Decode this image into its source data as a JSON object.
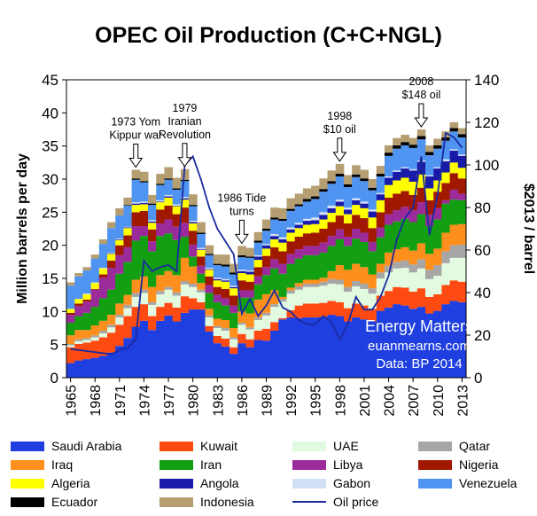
{
  "chart_data": {
    "type": "area",
    "stacked": true,
    "title": "OPEC Oil Production (C+C+NGL)",
    "xlabel": "",
    "ylabel": "Million barrels per day",
    "y2label": "$2013 / barrel",
    "ylim": [
      0,
      45
    ],
    "yticks": [
      0,
      5,
      10,
      15,
      20,
      25,
      30,
      35,
      40,
      45
    ],
    "y2lim": [
      0,
      140
    ],
    "y2ticks": [
      0,
      20,
      40,
      60,
      80,
      100,
      120,
      140
    ],
    "xlim": [
      1965,
      2013
    ],
    "xtick_labels": [
      "1965",
      "1968",
      "1971",
      "1974",
      "1977",
      "1980",
      "1983",
      "1986",
      "1989",
      "1992",
      "1995",
      "1998",
      "2001",
      "2004",
      "2007",
      "2010",
      "2013"
    ],
    "years": [
      1965,
      1966,
      1967,
      1968,
      1969,
      1970,
      1971,
      1972,
      1973,
      1974,
      1975,
      1976,
      1977,
      1978,
      1979,
      1980,
      1981,
      1982,
      1983,
      1984,
      1985,
      1986,
      1987,
      1988,
      1989,
      1990,
      1991,
      1992,
      1993,
      1994,
      1995,
      1996,
      1997,
      1998,
      1999,
      2000,
      2001,
      2002,
      2003,
      2004,
      2005,
      2006,
      2007,
      2008,
      2009,
      2010,
      2011,
      2012,
      2013
    ],
    "series": [
      {
        "name": "Saudi Arabia",
        "color": "#1f3fe0",
        "values": [
          2.2,
          2.6,
          2.8,
          3.0,
          3.3,
          3.8,
          4.8,
          6.0,
          7.7,
          8.6,
          7.2,
          8.6,
          9.4,
          8.5,
          9.8,
          10.3,
          10.3,
          7.0,
          5.2,
          4.7,
          3.6,
          5.2,
          4.6,
          5.7,
          5.6,
          7.1,
          8.8,
          9.1,
          9.0,
          9.1,
          9.1,
          9.2,
          9.5,
          9.3,
          8.5,
          9.1,
          8.8,
          8.5,
          10.1,
          10.6,
          11.1,
          10.9,
          10.4,
          10.7,
          9.7,
          10.1,
          11.1,
          11.6,
          11.4
        ]
      },
      {
        "name": "Kuwait",
        "color": "#ff4a12",
        "values": [
          2.4,
          2.5,
          2.5,
          2.6,
          2.8,
          3.0,
          3.2,
          3.3,
          3.0,
          2.5,
          2.1,
          2.1,
          1.9,
          2.1,
          2.5,
          1.7,
          1.1,
          0.8,
          1.1,
          1.2,
          1.0,
          1.4,
          1.2,
          1.4,
          1.8,
          1.3,
          0.2,
          1.1,
          1.9,
          2.1,
          2.1,
          2.1,
          2.1,
          2.1,
          2.0,
          2.1,
          2.1,
          1.9,
          2.3,
          2.5,
          2.6,
          2.7,
          2.6,
          2.8,
          2.5,
          2.5,
          2.9,
          3.1,
          3.1
        ]
      },
      {
        "name": "UAE",
        "color": "#e2fae0",
        "values": [
          0.3,
          0.4,
          0.4,
          0.5,
          0.6,
          0.8,
          1.1,
          1.2,
          1.5,
          1.7,
          1.7,
          1.9,
          2.0,
          1.8,
          1.8,
          1.7,
          1.5,
          1.3,
          1.2,
          1.2,
          1.2,
          1.4,
          1.5,
          1.6,
          2.0,
          2.3,
          2.5,
          2.5,
          2.4,
          2.5,
          2.5,
          2.6,
          2.6,
          2.7,
          2.5,
          2.6,
          2.5,
          2.3,
          2.6,
          2.8,
          2.8,
          3.0,
          2.9,
          3.0,
          2.7,
          2.8,
          3.3,
          3.4,
          3.6
        ]
      },
      {
        "name": "Qatar",
        "color": "#a6a6a6",
        "values": [
          0.2,
          0.3,
          0.3,
          0.3,
          0.4,
          0.4,
          0.4,
          0.5,
          0.6,
          0.5,
          0.4,
          0.5,
          0.4,
          0.5,
          0.5,
          0.5,
          0.4,
          0.3,
          0.3,
          0.4,
          0.3,
          0.3,
          0.3,
          0.4,
          0.4,
          0.4,
          0.4,
          0.5,
          0.5,
          0.5,
          0.5,
          0.6,
          0.7,
          0.7,
          0.7,
          0.8,
          0.8,
          0.8,
          0.9,
          1.0,
          1.0,
          1.1,
          1.2,
          1.4,
          1.4,
          1.6,
          1.8,
          1.9,
          2.0
        ]
      },
      {
        "name": "Iraq",
        "color": "#ff8f1c",
        "values": [
          1.3,
          1.4,
          1.2,
          1.5,
          1.5,
          1.5,
          1.7,
          1.5,
          2.0,
          2.0,
          2.3,
          2.4,
          2.4,
          2.6,
          3.5,
          2.6,
          1.0,
          1.0,
          1.1,
          1.2,
          1.4,
          1.7,
          2.1,
          2.7,
          2.8,
          2.1,
          0.3,
          0.4,
          0.5,
          0.6,
          0.6,
          0.6,
          1.2,
          2.2,
          2.6,
          2.6,
          2.5,
          2.1,
          1.3,
          2.0,
          1.9,
          2.0,
          2.1,
          2.4,
          2.4,
          2.5,
          2.8,
          3.1,
          3.1
        ]
      },
      {
        "name": "Iran",
        "color": "#12a012",
        "values": [
          1.9,
          2.1,
          2.6,
          2.8,
          3.4,
          3.8,
          4.5,
          5.0,
          5.9,
          6.1,
          5.4,
          5.9,
          5.7,
          5.3,
          3.2,
          1.5,
          1.4,
          2.4,
          2.5,
          2.2,
          2.3,
          2.1,
          2.4,
          2.3,
          2.9,
          3.3,
          3.5,
          3.6,
          3.7,
          3.7,
          3.7,
          3.8,
          3.8,
          3.9,
          3.6,
          3.8,
          3.8,
          3.5,
          4.0,
          4.2,
          4.2,
          4.3,
          4.3,
          4.4,
          4.2,
          4.4,
          4.4,
          3.8,
          3.6
        ]
      },
      {
        "name": "Libya",
        "color": "#9b2a9b",
        "values": [
          1.2,
          1.5,
          1.7,
          2.6,
          3.1,
          3.3,
          2.8,
          2.2,
          2.2,
          1.5,
          1.5,
          1.9,
          2.1,
          2.0,
          2.1,
          1.8,
          1.2,
          1.2,
          1.1,
          1.1,
          1.1,
          1.1,
          1.1,
          1.2,
          1.2,
          1.4,
          1.5,
          1.5,
          1.4,
          1.4,
          1.4,
          1.5,
          1.5,
          1.5,
          1.4,
          1.5,
          1.4,
          1.4,
          1.5,
          1.6,
          1.7,
          1.8,
          1.8,
          1.8,
          1.7,
          1.7,
          0.5,
          1.5,
          1.0
        ]
      },
      {
        "name": "Nigeria",
        "color": "#a01800",
        "values": [
          0.3,
          0.4,
          0.3,
          0.1,
          0.5,
          1.1,
          1.5,
          1.8,
          2.1,
          2.3,
          1.8,
          2.1,
          2.1,
          1.9,
          2.3,
          2.1,
          1.4,
          1.3,
          1.2,
          1.4,
          1.5,
          1.5,
          1.3,
          1.4,
          1.7,
          1.8,
          1.9,
          1.9,
          1.9,
          1.9,
          2.0,
          2.1,
          2.1,
          2.1,
          2.0,
          2.1,
          2.2,
          2.1,
          2.3,
          2.5,
          2.5,
          2.4,
          2.3,
          2.2,
          2.2,
          2.5,
          2.6,
          2.5,
          2.3
        ]
      },
      {
        "name": "Algeria",
        "color": "#ffff00",
        "values": [
          0.6,
          0.7,
          0.8,
          0.9,
          0.9,
          1.0,
          0.8,
          1.1,
          1.1,
          1.0,
          1.0,
          1.1,
          1.2,
          1.2,
          1.2,
          1.1,
          1.0,
          1.0,
          1.0,
          1.1,
          1.1,
          1.1,
          1.1,
          1.1,
          1.1,
          1.2,
          1.3,
          1.3,
          1.3,
          1.3,
          1.3,
          1.4,
          1.4,
          1.4,
          1.4,
          1.5,
          1.5,
          1.6,
          1.8,
          1.9,
          2.0,
          2.0,
          2.0,
          2.0,
          1.8,
          1.7,
          1.6,
          1.6,
          1.6
        ]
      },
      {
        "name": "Angola",
        "color": "#1a1aa8",
        "values": [
          0.0,
          0.0,
          0.0,
          0.0,
          0.0,
          0.1,
          0.1,
          0.1,
          0.2,
          0.2,
          0.2,
          0.1,
          0.2,
          0.1,
          0.2,
          0.2,
          0.1,
          0.1,
          0.2,
          0.2,
          0.2,
          0.3,
          0.4,
          0.5,
          0.5,
          0.5,
          0.5,
          0.5,
          0.5,
          0.6,
          0.6,
          0.7,
          0.7,
          0.7,
          0.7,
          0.7,
          0.7,
          0.9,
          0.9,
          1.1,
          1.3,
          1.4,
          1.7,
          1.9,
          1.8,
          1.8,
          1.7,
          1.8,
          1.8
        ]
      },
      {
        "name": "Gabon",
        "color": "#d2e0f5",
        "values": [
          0.0,
          0.0,
          0.1,
          0.1,
          0.1,
          0.1,
          0.1,
          0.1,
          0.2,
          0.2,
          0.2,
          0.2,
          0.2,
          0.2,
          0.2,
          0.2,
          0.2,
          0.2,
          0.2,
          0.2,
          0.2,
          0.2,
          0.2,
          0.2,
          0.2,
          0.3,
          0.3,
          0.3,
          0.3,
          0.3,
          0.4,
          0.4,
          0.4,
          0.3,
          0.3,
          0.3,
          0.3,
          0.3,
          0.2,
          0.2,
          0.2,
          0.2,
          0.2,
          0.2,
          0.2,
          0.2,
          0.3,
          0.2,
          0.2
        ]
      },
      {
        "name": "Venezuela",
        "color": "#4f94f0",
        "values": [
          3.5,
          3.4,
          3.5,
          3.6,
          3.6,
          3.7,
          3.5,
          3.2,
          3.4,
          2.9,
          2.3,
          2.3,
          2.3,
          2.2,
          2.4,
          2.2,
          2.1,
          1.9,
          1.9,
          1.9,
          1.7,
          1.9,
          1.9,
          1.9,
          2.0,
          2.2,
          2.5,
          2.5,
          2.5,
          2.6,
          2.8,
          3.1,
          3.3,
          3.5,
          3.1,
          3.2,
          3.1,
          2.9,
          2.5,
          3.1,
          3.3,
          3.3,
          3.2,
          3.2,
          3.0,
          2.8,
          2.8,
          2.7,
          2.6
        ]
      },
      {
        "name": "Ecuador",
        "color": "#000000",
        "values": [
          0.0,
          0.0,
          0.0,
          0.0,
          0.0,
          0.0,
          0.0,
          0.1,
          0.2,
          0.2,
          0.2,
          0.2,
          0.2,
          0.2,
          0.2,
          0.2,
          0.2,
          0.2,
          0.2,
          0.3,
          0.3,
          0.3,
          0.2,
          0.3,
          0.3,
          0.3,
          0.3,
          0.3,
          0.3,
          0.4,
          0.4,
          0.4,
          0.4,
          0.4,
          0.4,
          0.4,
          0.4,
          0.4,
          0.4,
          0.5,
          0.5,
          0.5,
          0.5,
          0.5,
          0.5,
          0.5,
          0.5,
          0.5,
          0.5
        ]
      },
      {
        "name": "Indonesia",
        "color": "#b59f72",
        "values": [
          0.5,
          0.5,
          0.5,
          0.6,
          0.7,
          0.9,
          1.1,
          1.1,
          1.3,
          1.4,
          1.3,
          1.5,
          1.7,
          1.6,
          1.6,
          1.6,
          1.6,
          1.3,
          1.4,
          1.5,
          1.3,
          1.4,
          1.3,
          1.3,
          1.4,
          1.5,
          1.6,
          1.6,
          1.6,
          1.6,
          1.6,
          1.6,
          1.6,
          1.5,
          1.4,
          1.4,
          1.3,
          1.3,
          1.2,
          1.1,
          1.1,
          1.1,
          1.0,
          1.0,
          1.0,
          1.0,
          0.9,
          0.9,
          0.9
        ]
      }
    ],
    "line_series": {
      "name": "Oil price",
      "axis": "right",
      "color": "#1a2aa0",
      "values": [
        13.5,
        13,
        12.5,
        12,
        11.5,
        11,
        13,
        14,
        18,
        55,
        50,
        52,
        53,
        50,
        100,
        104,
        93,
        80,
        70,
        64,
        58,
        30,
        37,
        29,
        34,
        41,
        33,
        31,
        27,
        25,
        25,
        29,
        26,
        18,
        25,
        38,
        32,
        32,
        38,
        48,
        65,
        75,
        80,
        104,
        67,
        86,
        115,
        113,
        108
      ]
    },
    "annotations": [
      {
        "lines": [
          "1973 Yom",
          "Kippur war"
        ],
        "year": 1973
      },
      {
        "lines": [
          "1979",
          "Iranian",
          "Revolution"
        ],
        "year": 1979
      },
      {
        "lines": [
          "1986 Tide",
          "turns"
        ],
        "year": 1986
      },
      {
        "lines": [
          "1998",
          "$10 oil"
        ],
        "year": 1998
      },
      {
        "lines": [
          "2008",
          "$148 oil"
        ],
        "year": 2008
      }
    ],
    "watermark": [
      "Energy Matters",
      "euanmearns.com",
      "Data: BP 2014"
    ],
    "legend": [
      {
        "label": "Saudi Arabia",
        "color": "#1f3fe0"
      },
      {
        "label": "Kuwait",
        "color": "#ff4a12"
      },
      {
        "label": "UAE",
        "color": "#e2fae0"
      },
      {
        "label": "Qatar",
        "color": "#a6a6a6"
      },
      {
        "label": "Iraq",
        "color": "#ff8f1c"
      },
      {
        "label": "Iran",
        "color": "#12a012"
      },
      {
        "label": "Libya",
        "color": "#9b2a9b"
      },
      {
        "label": "Nigeria",
        "color": "#a01800"
      },
      {
        "label": "Algeria",
        "color": "#ffff00"
      },
      {
        "label": "Angola",
        "color": "#1a1aa8"
      },
      {
        "label": "Gabon",
        "color": "#d2e0f5"
      },
      {
        "label": "Venezuela",
        "color": "#4f94f0"
      },
      {
        "label": "Ecuador",
        "color": "#000000"
      },
      {
        "label": "Indonesia",
        "color": "#b59f72"
      },
      {
        "label": "Oil price",
        "color": "#1a2aa0",
        "kind": "line"
      }
    ]
  }
}
